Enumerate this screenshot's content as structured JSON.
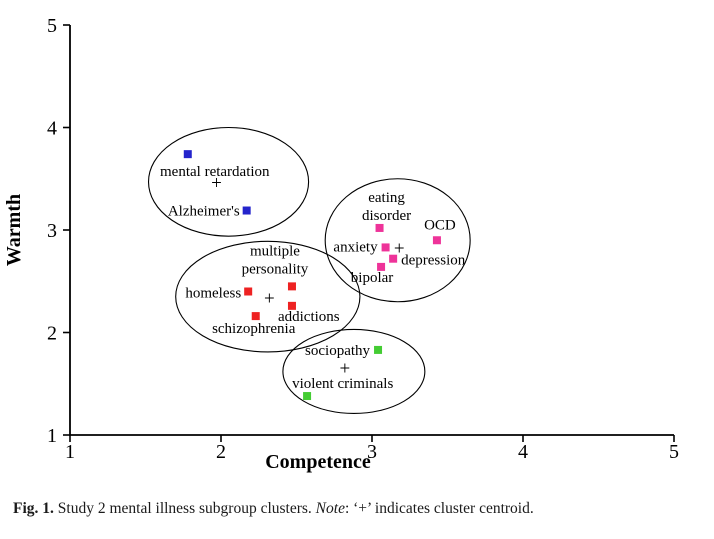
{
  "figure": {
    "caption": {
      "label": "Fig. 1.",
      "title": "Study 2 mental illness subgroup clusters.",
      "note_word": "Note",
      "note_text": ": ‘+’ indicates cluster centroid."
    }
  },
  "chart_data": {
    "type": "scatter",
    "title": "",
    "xlabel": "Competence",
    "ylabel": "Warmth",
    "xlim": [
      1,
      5
    ],
    "ylim": [
      1,
      5
    ],
    "x_ticks": [
      "1",
      "2",
      "3",
      "4",
      "5"
    ],
    "y_ticks": [
      "1",
      "2",
      "3",
      "4",
      "5"
    ],
    "grid": false,
    "legend": "none",
    "point_marker": "filled-square",
    "centroid_marker": "+",
    "clusters": [
      {
        "color": "#2424cc",
        "centroid": {
          "x": 1.97,
          "y": 3.46
        },
        "ellipse": {
          "cx": 2.05,
          "cy": 3.47,
          "rx": 0.53,
          "ry": 0.53
        },
        "points": [
          {
            "label": "mental retardation",
            "x": 1.78,
            "y": 3.74,
            "label_anchor": "middle",
            "label_dx": 27,
            "label_dy": 22
          },
          {
            "label": "Alzheimer's",
            "x": 2.17,
            "y": 3.19,
            "label_anchor": "end",
            "label_dx": -7,
            "label_dy": 5
          }
        ]
      },
      {
        "color": "#ee2222",
        "centroid": {
          "x": 2.32,
          "y": 2.33
        },
        "ellipse": {
          "cx": 2.31,
          "cy": 2.35,
          "rx": 0.61,
          "ry": 0.54
        },
        "points": [
          {
            "label": "multiple\npersonality",
            "x": 2.47,
            "y": 2.45,
            "label_anchor": "middle",
            "label_dx": -17,
            "label_dy": -31
          },
          {
            "label": "homeless",
            "x": 2.18,
            "y": 2.4,
            "label_anchor": "end",
            "label_dx": -7,
            "label_dy": 6
          },
          {
            "label": "addictions",
            "x": 2.47,
            "y": 2.26,
            "label_anchor": "start",
            "label_dx": -14,
            "label_dy": 15
          },
          {
            "label": "schizophrenia",
            "x": 2.23,
            "y": 2.16,
            "label_anchor": "middle",
            "label_dx": -2,
            "label_dy": 17
          }
        ]
      },
      {
        "color": "#ee3399",
        "centroid": {
          "x": 3.18,
          "y": 2.82
        },
        "ellipse": {
          "cx": 3.17,
          "cy": 2.9,
          "rx": 0.48,
          "ry": 0.6
        },
        "points": [
          {
            "label": "eating\ndisorder",
            "x": 3.05,
            "y": 3.02,
            "label_anchor": "middle",
            "label_dx": 7,
            "label_dy": -26
          },
          {
            "label": "OCD",
            "x": 3.43,
            "y": 2.9,
            "label_anchor": "middle",
            "label_dx": 3,
            "label_dy": -11
          },
          {
            "label": "anxiety",
            "x": 3.09,
            "y": 2.83,
            "label_anchor": "end",
            "label_dx": -8,
            "label_dy": 4
          },
          {
            "label": "depression",
            "x": 3.14,
            "y": 2.72,
            "label_anchor": "start",
            "label_dx": 8,
            "label_dy": 6
          },
          {
            "label": "bipolar",
            "x": 3.06,
            "y": 2.64,
            "label_anchor": "middle",
            "label_dx": -9,
            "label_dy": 15
          }
        ]
      },
      {
        "color": "#44cc33",
        "centroid": {
          "x": 2.82,
          "y": 1.65
        },
        "ellipse": {
          "cx": 2.88,
          "cy": 1.62,
          "rx": 0.47,
          "ry": 0.41
        },
        "points": [
          {
            "label": "sociopathy",
            "x": 3.04,
            "y": 1.83,
            "label_anchor": "end",
            "label_dx": -8,
            "label_dy": 5
          },
          {
            "label": "violent criminals",
            "x": 2.57,
            "y": 1.38,
            "label_anchor": "start",
            "label_dx": -15,
            "label_dy": -8
          }
        ]
      }
    ]
  }
}
